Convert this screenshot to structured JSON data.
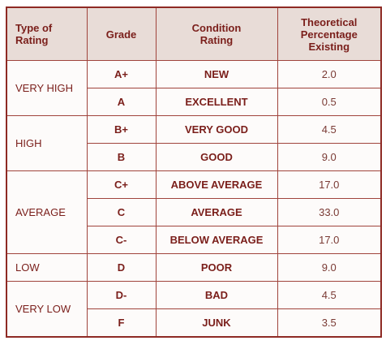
{
  "table": {
    "header": [
      "Type of Rating",
      "Grade",
      "Condition Rating",
      "Theoretical Percentage Existing"
    ],
    "groups": [
      {
        "type": "VERY HIGH",
        "rows": [
          {
            "grade": "A+",
            "condition": "NEW",
            "percentage": "2.0"
          },
          {
            "grade": "A",
            "condition": "EXCELLENT",
            "percentage": "0.5"
          }
        ]
      },
      {
        "type": "HIGH",
        "rows": [
          {
            "grade": "B+",
            "condition": "VERY GOOD",
            "percentage": "4.5"
          },
          {
            "grade": "B",
            "condition": "GOOD",
            "percentage": "9.0"
          }
        ]
      },
      {
        "type": "AVERAGE",
        "rows": [
          {
            "grade": "C+",
            "condition": "ABOVE AVERAGE",
            "percentage": "17.0"
          },
          {
            "grade": "C",
            "condition": "AVERAGE",
            "percentage": "33.0"
          },
          {
            "grade": "C-",
            "condition": "BELOW AVERAGE",
            "percentage": "17.0"
          }
        ]
      },
      {
        "type": "LOW",
        "rows": [
          {
            "grade": "D",
            "condition": "POOR",
            "percentage": "9.0"
          }
        ]
      },
      {
        "type": "VERY LOW",
        "rows": [
          {
            "grade": "D-",
            "condition": "BAD",
            "percentage": "4.5"
          },
          {
            "grade": "F",
            "condition": "JUNK",
            "percentage": "3.5"
          }
        ]
      }
    ]
  }
}
